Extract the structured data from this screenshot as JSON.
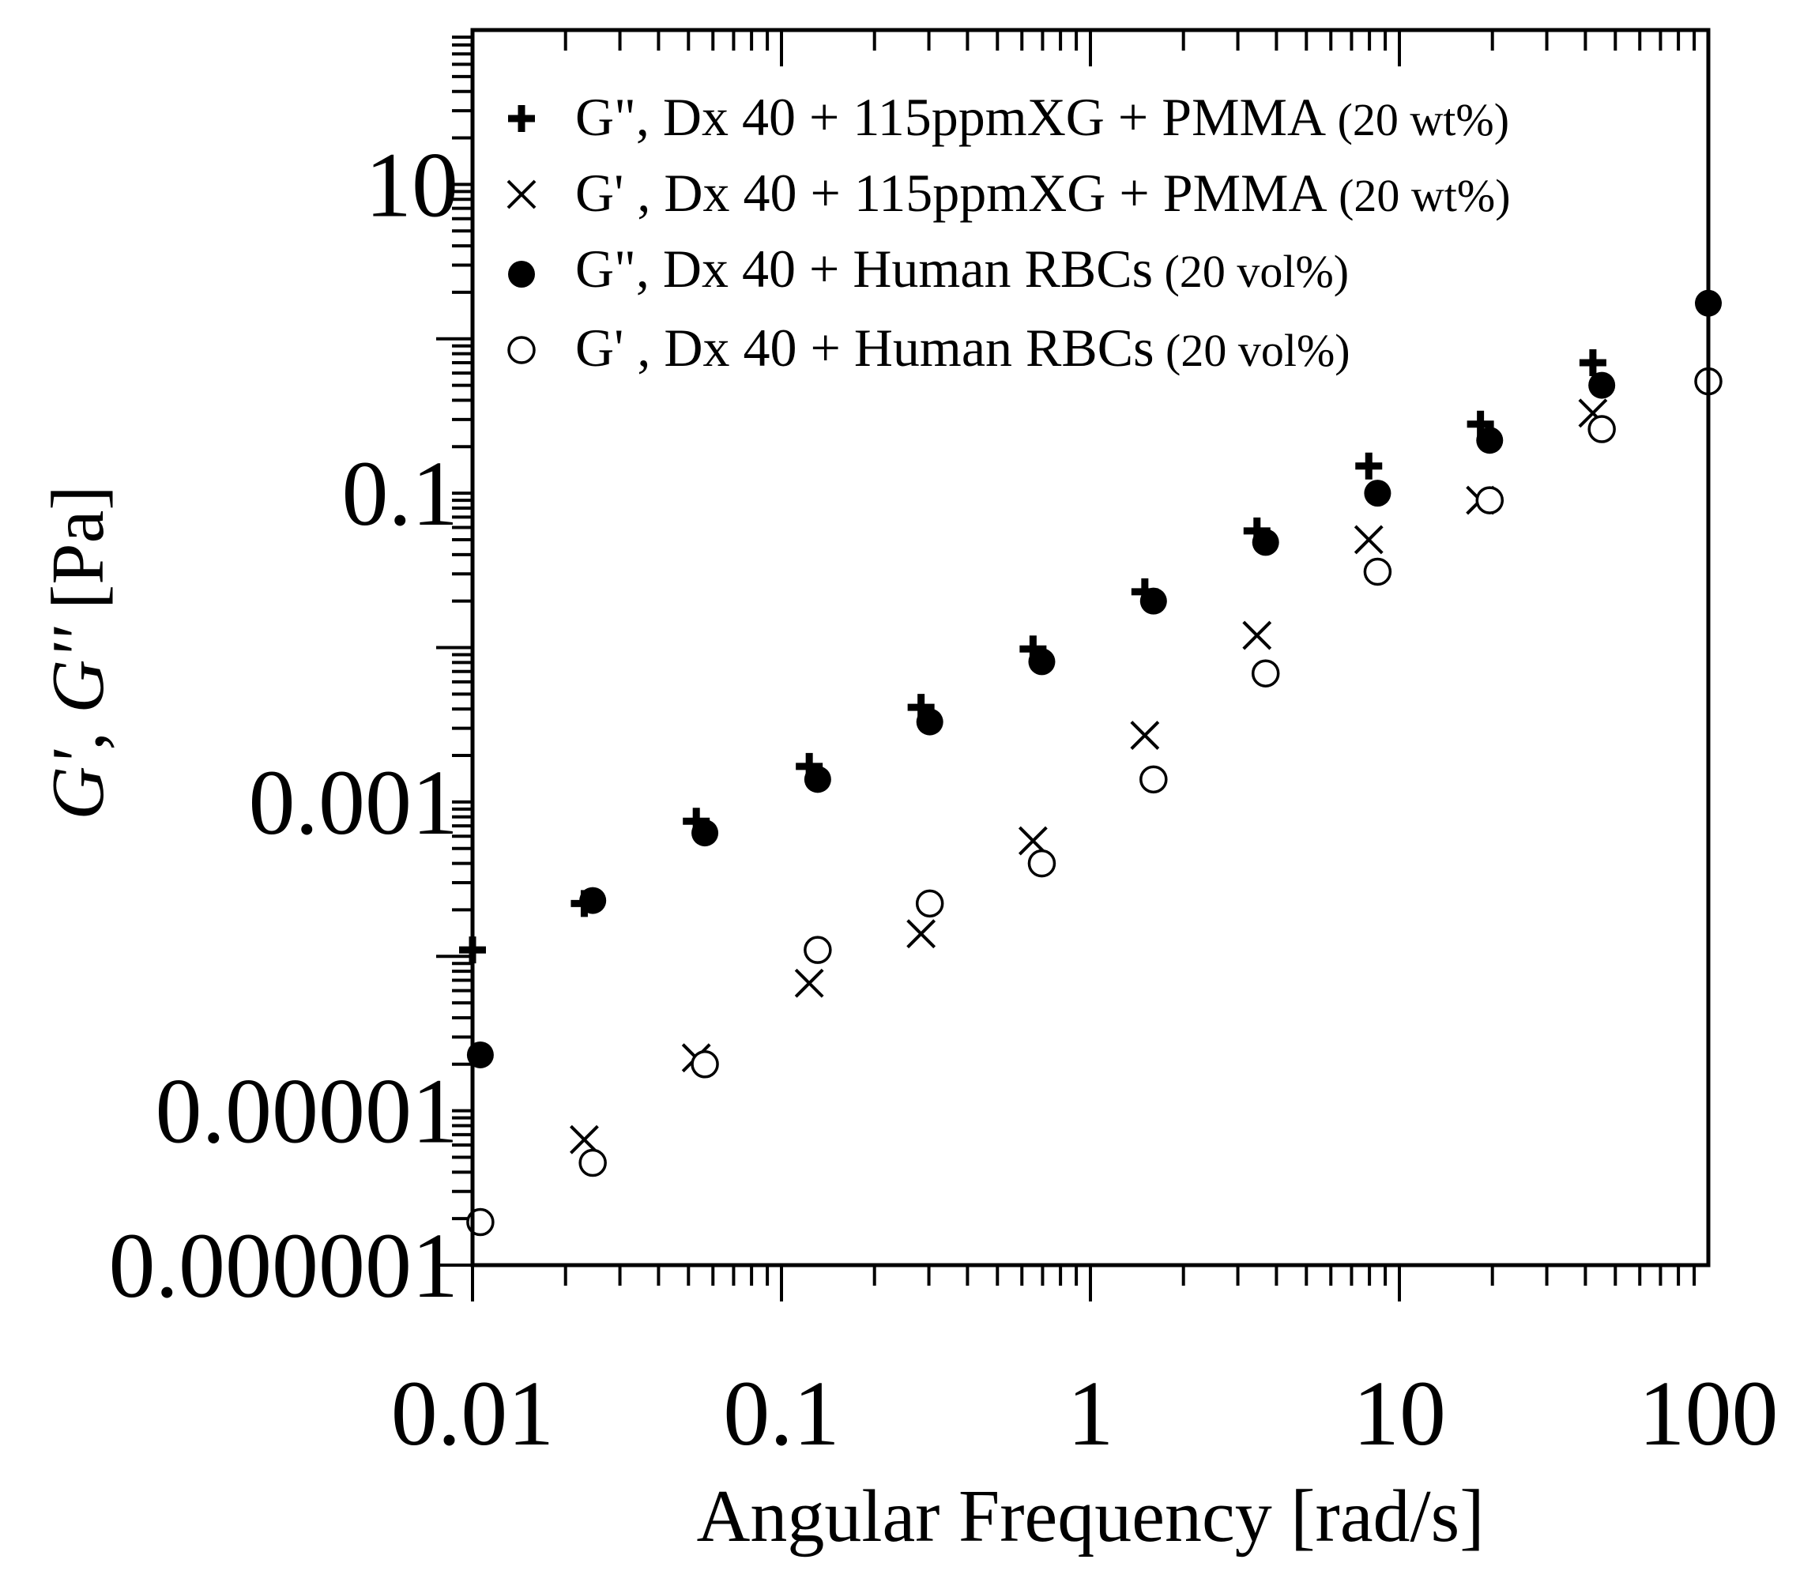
{
  "chart_data": {
    "type": "scatter",
    "title": "",
    "xlabel": "Angular Frequency  [rad/s]",
    "ylabel": {
      "g1": "G'",
      "sep": ", ",
      "g2": "G''",
      "unit": " [Pa]"
    },
    "xscale": "log",
    "yscale": "log",
    "xlim": [
      0.01,
      100
    ],
    "ylim": [
      1e-06,
      100
    ],
    "x_tick_labels": [
      "0.01",
      "0.1",
      "1",
      "10",
      "100"
    ],
    "y_tick_labels": [
      "0.000001",
      "0.00001",
      "0.001",
      "0.1",
      "10"
    ],
    "legend_position": "top-left",
    "series": [
      {
        "name": "G\", Dx 40 + 115ppmXG + PMMA",
        "name_suffix": " (20 wt%)",
        "marker": "plus",
        "x": [
          0.01,
          0.023,
          0.053,
          0.123,
          0.283,
          0.652,
          1.5,
          3.46,
          7.96,
          18.3,
          42.3
        ],
        "y": [
          0.00011,
          0.00022,
          0.00075,
          0.0017,
          0.0041,
          0.0098,
          0.023,
          0.057,
          0.15,
          0.28,
          0.7
        ]
      },
      {
        "name": "G' , Dx 40 + 115ppmXG + PMMA",
        "name_suffix": " (20 wt%)",
        "marker": "cross",
        "x": [
          0.023,
          0.053,
          0.123,
          0.283,
          0.652,
          1.5,
          3.46,
          7.96,
          18.3,
          42.3
        ],
        "y": [
          6.5e-06,
          2.2e-05,
          6.7e-05,
          0.00014,
          0.00056,
          0.0027,
          0.012,
          0.05,
          0.09,
          0.33
        ]
      },
      {
        "name": "G\", Dx 40 + Human RBCs",
        "name_suffix": " (20 vol%)",
        "marker": "filled-circle",
        "x": [
          0.0106,
          0.0245,
          0.0565,
          0.131,
          0.302,
          0.696,
          1.6,
          3.69,
          8.5,
          19.6,
          45.2,
          100
        ],
        "y": [
          2.3e-05,
          0.00023,
          0.00063,
          0.0014,
          0.0033,
          0.0081,
          0.02,
          0.048,
          0.1,
          0.22,
          0.5,
          1.7
        ]
      },
      {
        "name": "G' , Dx 40 + Human RBCs",
        "name_suffix": " (20 vol%)",
        "marker": "open-circle",
        "x": [
          0.0106,
          0.0245,
          0.0565,
          0.131,
          0.302,
          0.696,
          1.6,
          3.69,
          8.5,
          19.6,
          45.2,
          100
        ],
        "y": [
          1.9e-06,
          4.6e-06,
          2e-05,
          0.00011,
          0.00022,
          0.0004,
          0.0014,
          0.0068,
          0.031,
          0.09,
          0.26,
          0.53
        ]
      }
    ]
  }
}
